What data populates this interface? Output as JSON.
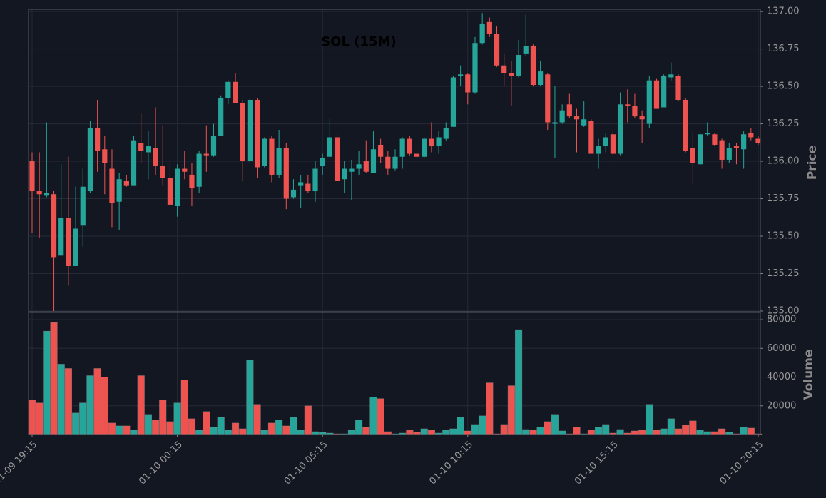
{
  "chart_data": {
    "type": "candlestick",
    "title": "SOL (15M)",
    "ylabel": "Price",
    "volume_label": "Volume",
    "up_color": "#26a69a",
    "down_color": "#ef5350",
    "grid": true,
    "categories": [
      "01-09 19:15",
      null,
      null,
      null,
      null,
      null,
      null,
      null,
      null,
      null,
      null,
      null,
      null,
      null,
      null,
      null,
      null,
      null,
      null,
      null,
      "01-10 00:15",
      null,
      null,
      null,
      null,
      null,
      null,
      null,
      null,
      null,
      null,
      null,
      null,
      null,
      null,
      null,
      null,
      null,
      null,
      null,
      "01-10 05:15",
      null,
      null,
      null,
      null,
      null,
      null,
      null,
      null,
      null,
      null,
      null,
      null,
      null,
      null,
      null,
      null,
      null,
      null,
      null,
      "01-10 10:15",
      null,
      null,
      null,
      null,
      null,
      null,
      null,
      null,
      null,
      null,
      null,
      null,
      null,
      null,
      null,
      null,
      null,
      null,
      null,
      "01-10 15:15",
      null,
      null,
      null,
      null,
      null,
      null,
      null,
      null,
      null,
      null,
      null,
      null,
      null,
      null,
      null,
      null,
      null,
      null,
      null,
      "01-10 20:15"
    ],
    "open": [
      136.0,
      135.8,
      135.77,
      135.78,
      135.37,
      135.62,
      135.3,
      135.57,
      135.8,
      136.22,
      136.08,
      135.95,
      135.73,
      135.87,
      135.84,
      136.12,
      136.06,
      136.09,
      135.97,
      135.89,
      135.7,
      135.95,
      135.91,
      135.83,
      136.05,
      136.04,
      136.17,
      136.42,
      136.53,
      136.39,
      136.0,
      136.41,
      135.97,
      136.15,
      135.91,
      136.09,
      135.76,
      135.84,
      135.85,
      135.8,
      135.97,
      136.03,
      136.16,
      135.88,
      135.93,
      135.95,
      136.0,
      135.92,
      136.11,
      136.03,
      135.95,
      136.03,
      136.15,
      136.05,
      136.03,
      136.15,
      136.1,
      136.15,
      136.23,
      136.57,
      136.58,
      136.46,
      136.79,
      136.93,
      136.85,
      136.64,
      136.59,
      136.57,
      136.72,
      136.77,
      136.51,
      136.58,
      136.25,
      136.26,
      136.38,
      136.3,
      136.24,
      136.27,
      136.05,
      136.1,
      136.18,
      136.05,
      136.38,
      136.37,
      136.3,
      136.25,
      136.54,
      136.36,
      136.56,
      136.57,
      136.41,
      136.09,
      135.98,
      136.18,
      136.18,
      136.14,
      136.01,
      136.1,
      136.08,
      136.19,
      136.15
    ],
    "high": [
      136.06,
      136.06,
      136.26,
      135.8,
      135.98,
      136.03,
      135.83,
      135.95,
      136.27,
      136.41,
      136.17,
      136.08,
      135.92,
      135.91,
      136.17,
      136.32,
      136.2,
      136.36,
      136.24,
      135.99,
      135.98,
      136.07,
      135.99,
      136.07,
      136.24,
      136.25,
      136.44,
      136.54,
      136.59,
      136.41,
      136.42,
      136.42,
      136.16,
      136.17,
      136.21,
      136.12,
      135.88,
      135.91,
      135.91,
      136.0,
      136.05,
      136.29,
      136.19,
      136.0,
      136.01,
      136.07,
      136.14,
      136.2,
      136.15,
      136.07,
      136.08,
      136.16,
      136.17,
      136.08,
      136.16,
      136.26,
      136.2,
      136.26,
      136.57,
      136.64,
      136.59,
      136.83,
      136.99,
      136.96,
      136.9,
      136.72,
      136.67,
      136.81,
      136.98,
      136.78,
      136.67,
      136.59,
      136.5,
      136.38,
      136.45,
      136.35,
      136.4,
      136.28,
      136.15,
      136.19,
      136.2,
      136.46,
      136.48,
      136.45,
      136.34,
      136.57,
      136.55,
      136.58,
      136.66,
      136.58,
      136.42,
      136.19,
      136.19,
      136.26,
      136.19,
      136.15,
      136.12,
      136.12,
      136.2,
      136.22,
      136.17
    ],
    "low": [
      135.52,
      135.49,
      135.76,
      135.0,
      135.37,
      135.17,
      135.3,
      135.43,
      135.79,
      135.93,
      135.78,
      135.56,
      135.54,
      135.83,
      135.84,
      135.99,
      135.88,
      135.91,
      135.84,
      135.71,
      135.63,
      135.88,
      135.7,
      135.79,
      135.93,
      136.03,
      136.17,
      136.38,
      136.39,
      135.87,
      135.99,
      135.89,
      135.96,
      135.86,
      135.89,
      135.68,
      135.75,
      135.69,
      135.79,
      135.73,
      135.91,
      136.03,
      135.87,
      135.79,
      135.74,
      135.91,
      135.92,
      135.92,
      135.99,
      135.91,
      135.94,
      135.95,
      136.04,
      136.02,
      136.02,
      136.06,
      136.05,
      136.14,
      136.23,
      136.5,
      136.38,
      136.45,
      136.78,
      136.83,
      136.63,
      136.5,
      136.37,
      136.56,
      136.7,
      136.5,
      136.5,
      136.21,
      136.02,
      136.25,
      136.29,
      136.06,
      136.23,
      136.05,
      135.95,
      136.06,
      136.04,
      136.04,
      136.26,
      136.29,
      136.12,
      136.22,
      136.35,
      136.36,
      136.54,
      136.4,
      136.06,
      135.85,
      135.97,
      136.17,
      136.1,
      135.95,
      135.99,
      135.98,
      135.95,
      136.14,
      136.11
    ],
    "close": [
      135.8,
      135.78,
      135.79,
      135.36,
      135.62,
      135.3,
      135.55,
      135.83,
      136.22,
      136.07,
      135.99,
      135.72,
      135.88,
      135.84,
      136.14,
      136.07,
      136.1,
      135.97,
      135.89,
      135.71,
      135.95,
      135.93,
      135.82,
      136.05,
      136.04,
      136.17,
      136.42,
      136.53,
      136.39,
      136.0,
      136.41,
      135.96,
      136.15,
      135.91,
      136.09,
      135.75,
      135.81,
      135.86,
      135.8,
      135.95,
      136.02,
      136.16,
      135.87,
      135.95,
      135.95,
      135.98,
      135.93,
      136.08,
      136.03,
      135.95,
      136.03,
      136.15,
      136.05,
      136.03,
      136.15,
      136.1,
      136.16,
      136.22,
      136.56,
      136.58,
      136.46,
      136.79,
      136.92,
      136.85,
      136.64,
      136.59,
      136.57,
      136.71,
      136.77,
      136.51,
      136.6,
      136.26,
      136.26,
      136.34,
      136.3,
      136.28,
      136.28,
      136.05,
      136.1,
      136.16,
      136.05,
      136.38,
      136.37,
      136.3,
      136.28,
      136.54,
      136.35,
      136.57,
      136.58,
      136.41,
      136.07,
      135.99,
      136.18,
      136.19,
      136.11,
      136.01,
      136.09,
      136.09,
      136.18,
      136.16,
      136.12
    ],
    "volume": [
      24000,
      22000,
      72000,
      78000,
      49000,
      46000,
      15000,
      22000,
      41000,
      46000,
      40000,
      8000,
      6000,
      6000,
      3000,
      41000,
      14000,
      10000,
      24000,
      9000,
      22000,
      38000,
      11000,
      3000,
      16000,
      5000,
      12000,
      3000,
      8000,
      4000,
      52000,
      21000,
      3000,
      8000,
      10000,
      6000,
      12000,
      3000,
      20000,
      2000,
      1500,
      1000,
      500,
      500,
      3000,
      10000,
      5000,
      26000,
      25000,
      2000,
      500,
      1000,
      3000,
      1500,
      4000,
      3000,
      1000,
      3000,
      4000,
      12000,
      2500,
      7000,
      13000,
      36000,
      500,
      7000,
      34000,
      73000,
      3500,
      3000,
      5000,
      9000,
      14000,
      2500,
      500,
      5000,
      500,
      3000,
      5000,
      7000,
      1000,
      3500,
      1000,
      2500,
      3000,
      21000,
      3000,
      4000,
      11000,
      4000,
      6500,
      9500,
      3000,
      2000,
      2000,
      4000,
      1500,
      500,
      5000,
      4500,
      500
    ],
    "ylim": [
      134.995,
      137.015
    ],
    "yticks": [
      {
        "value": 135,
        "label": "135.00"
      },
      {
        "value": 135.25,
        "label": "135.25"
      },
      {
        "value": 135.5,
        "label": "135.50"
      },
      {
        "value": 135.75,
        "label": "135.75"
      },
      {
        "value": 136,
        "label": "136.00"
      },
      {
        "value": 136.25,
        "label": "136.25"
      },
      {
        "value": 136.5,
        "label": "136.50"
      },
      {
        "value": 136.75,
        "label": "136.75"
      },
      {
        "value": 137,
        "label": "137.00"
      }
    ],
    "volume_ylim": [
      0,
      85000
    ],
    "volume_yticks": [
      20000,
      40000,
      60000,
      80000
    ]
  }
}
